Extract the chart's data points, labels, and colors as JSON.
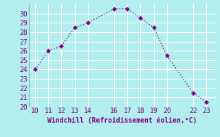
{
  "x": [
    10,
    11,
    12,
    13,
    14,
    16,
    17,
    18,
    19,
    20,
    22,
    23
  ],
  "y": [
    24,
    26,
    26.5,
    28.5,
    29,
    30.5,
    30.5,
    29.5,
    28.5,
    25.5,
    21.5,
    20.5
  ],
  "line_color": "#800080",
  "marker_color": "#800080",
  "bg_color": "#b2eeee",
  "grid_color": "#ffffff",
  "xlabel": "Windchill (Refroidissement éolien,°C)",
  "xlabel_color": "#800080",
  "tick_color": "#800080",
  "xlim": [
    9.5,
    23.7
  ],
  "ylim": [
    20,
    31
  ],
  "xticks": [
    10,
    11,
    12,
    13,
    14,
    16,
    17,
    18,
    19,
    20,
    22,
    23
  ],
  "yticks": [
    20,
    21,
    22,
    23,
    24,
    25,
    26,
    27,
    28,
    29,
    30
  ],
  "font_family": "monospace",
  "tick_fontsize": 7,
  "xlabel_fontsize": 7,
  "marker_size": 3,
  "line_width": 1.0
}
